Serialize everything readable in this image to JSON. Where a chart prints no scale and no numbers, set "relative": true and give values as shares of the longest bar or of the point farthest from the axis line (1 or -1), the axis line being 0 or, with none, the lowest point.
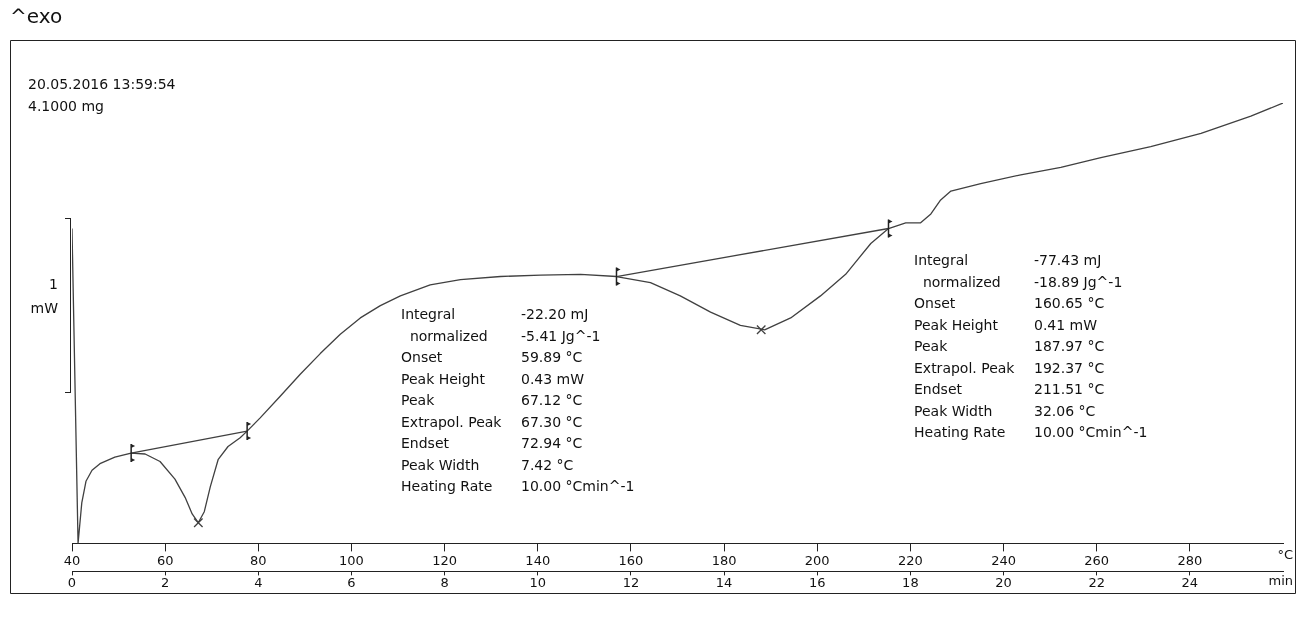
{
  "chart_data": {
    "type": "line",
    "relative": true,
    "legend": false,
    "grid": false,
    "xlabel": "°C",
    "x2label": "min",
    "xlim": [
      40,
      300
    ],
    "xticks": [
      40,
      60,
      80,
      100,
      120,
      140,
      160,
      180,
      200,
      220,
      240,
      260,
      280
    ],
    "x2lim": [
      0,
      26
    ],
    "x2ticks": [
      0,
      2,
      4,
      6,
      8,
      10,
      12,
      14,
      16,
      18,
      20,
      22,
      24
    ],
    "series": [
      {
        "color": "#404040",
        "marker": "none",
        "x": [
          40.0,
          41.3,
          42.1,
          43.0,
          44.3,
          46.0,
          49.2,
          52.7,
          55.7,
          58.9,
          62.1,
          64.3,
          65.8,
          67.1,
          68.4,
          69.7,
          71.4,
          73.5,
          76.1,
          77.6,
          80.4,
          84.7,
          89.0,
          93.3,
          97.6,
          101.9,
          106.2,
          110.5,
          116.9,
          123.4,
          132.0,
          140.6,
          149.2,
          156.9,
          164.2,
          170.6,
          177.1,
          183.5,
          188.7,
          194.3,
          200.7,
          206.1,
          211.5,
          215.3,
          219.0,
          222.2,
          224.4,
          226.5,
          228.7,
          235.1,
          243.7,
          252.3,
          260.9,
          271.6,
          282.4,
          293.1,
          300
        ],
        "values": [
          0.715,
          0,
          0.092,
          0.141,
          0.166,
          0.181,
          0.196,
          0.205,
          0.203,
          0.186,
          0.146,
          0.104,
          0.067,
          0.047,
          0.072,
          0.129,
          0.191,
          0.22,
          0.24,
          0.255,
          0.285,
          0.334,
          0.384,
          0.431,
          0.475,
          0.512,
          0.54,
          0.562,
          0.587,
          0.599,
          0.606,
          0.609,
          0.611,
          0.606,
          0.592,
          0.562,
          0.525,
          0.495,
          0.485,
          0.512,
          0.562,
          0.611,
          0.681,
          0.715,
          0.728,
          0.728,
          0.748,
          0.78,
          0.8,
          0.817,
          0.837,
          0.854,
          0.876,
          0.901,
          0.931,
          0.97,
          1
        ]
      },
      {
        "color": "#404040",
        "marker": "none",
        "x": [
          52.7,
          77.6
        ],
        "values": [
          0.205,
          0.255
        ]
      },
      {
        "color": "#404040",
        "marker": "none",
        "x": [
          156.9,
          215.3
        ],
        "values": [
          0.606,
          0.715
        ]
      },
      {
        "type": "scatter",
        "color": "#404040",
        "marker": "cross",
        "x": [
          67.12,
          187.97
        ],
        "values": [
          0.047,
          0.485
        ]
      }
    ],
    "annotations": [
      "^exo",
      "1",
      "mW",
      "20.05.2016 13:59:54",
      "4.1000 mg",
      "Integral\t-22.20 mJ\n  normalized\t-5.41 Jg^-1\nOnset\t59.89 °C\nPeak Height\t0.43 mW\nPeak\t67.12 °C\nExtrapol. Peak\t67.30 °C\nEndset\t72.94 °C\nPeak Width\t7.42 °C\nHeating Rate\t10.00 °Cmin^-1",
      "Integral\t-77.43 mJ\n  normalized\t-18.89 Jg^-1\nOnset\t160.65 °C\nPeak Height\t0.41 mW\nPeak\t187.97 °C\nExtrapol. Peak\t192.37 °C\nEndset\t211.51 °C\nPeak Width\t32.06 °C\nHeating Rate\t10.00 °Cmin^-1"
    ]
  }
}
